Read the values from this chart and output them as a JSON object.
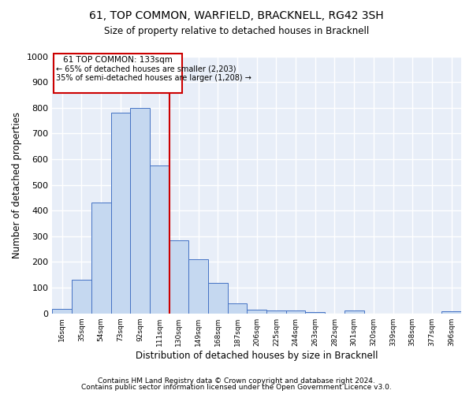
{
  "title": "61, TOP COMMON, WARFIELD, BRACKNELL, RG42 3SH",
  "subtitle": "Size of property relative to detached houses in Bracknell",
  "xlabel": "Distribution of detached houses by size in Bracknell",
  "ylabel": "Number of detached properties",
  "bar_heights": [
    18,
    130,
    430,
    780,
    800,
    575,
    285,
    210,
    120,
    40,
    15,
    10,
    10,
    5,
    0,
    10,
    0,
    0,
    0,
    0,
    8
  ],
  "tick_labels": [
    "16sqm",
    "35sqm",
    "54sqm",
    "73sqm",
    "92sqm",
    "111sqm",
    "130sqm",
    "149sqm",
    "168sqm",
    "187sqm",
    "206sqm",
    "225sqm",
    "244sqm",
    "263sqm",
    "282sqm",
    "301sqm",
    "320sqm",
    "339sqm",
    "358sqm",
    "377sqm",
    "396sqm"
  ],
  "bar_color": "#C5D8F0",
  "bar_edge_color": "#4472C4",
  "vline_color": "#CC0000",
  "vline_index": 6,
  "ann_title": "61 TOP COMMON: 133sqm",
  "ann_line1": "← 65% of detached houses are smaller (2,203)",
  "ann_line2": "35% of semi-detached houses are larger (1,208) →",
  "ylim": [
    0,
    1000
  ],
  "yticks": [
    0,
    100,
    200,
    300,
    400,
    500,
    600,
    700,
    800,
    900,
    1000
  ],
  "bg_color": "#E8EEF8",
  "grid_color": "#FFFFFF",
  "footer1": "Contains HM Land Registry data © Crown copyright and database right 2024.",
  "footer2": "Contains public sector information licensed under the Open Government Licence v3.0."
}
